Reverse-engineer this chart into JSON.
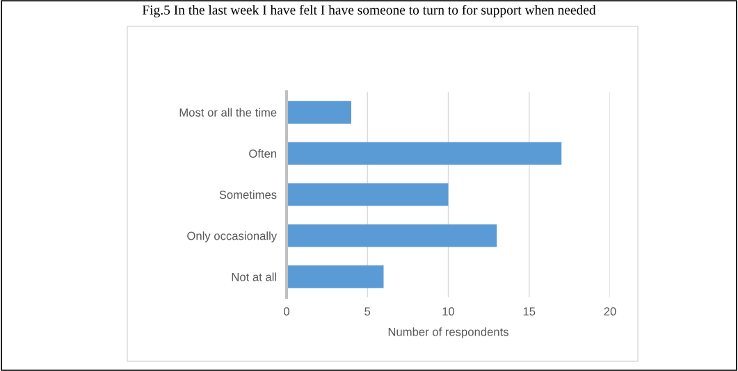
{
  "chart_data": {
    "type": "bar",
    "orientation": "horizontal",
    "title": "Fig.5 In the last week I have felt I have someone to turn to for support when needed",
    "xlabel": "Number of respondents",
    "categories": [
      "Most or all the time",
      "Often",
      "Sometimes",
      "Only occasionally",
      "Not at all"
    ],
    "values": [
      4,
      17,
      10,
      13,
      6
    ],
    "color": "#5b9bd5",
    "xlim": [
      0,
      20
    ],
    "xticks": [
      0,
      5,
      10,
      15,
      20
    ],
    "grid": "x",
    "legend": false
  }
}
